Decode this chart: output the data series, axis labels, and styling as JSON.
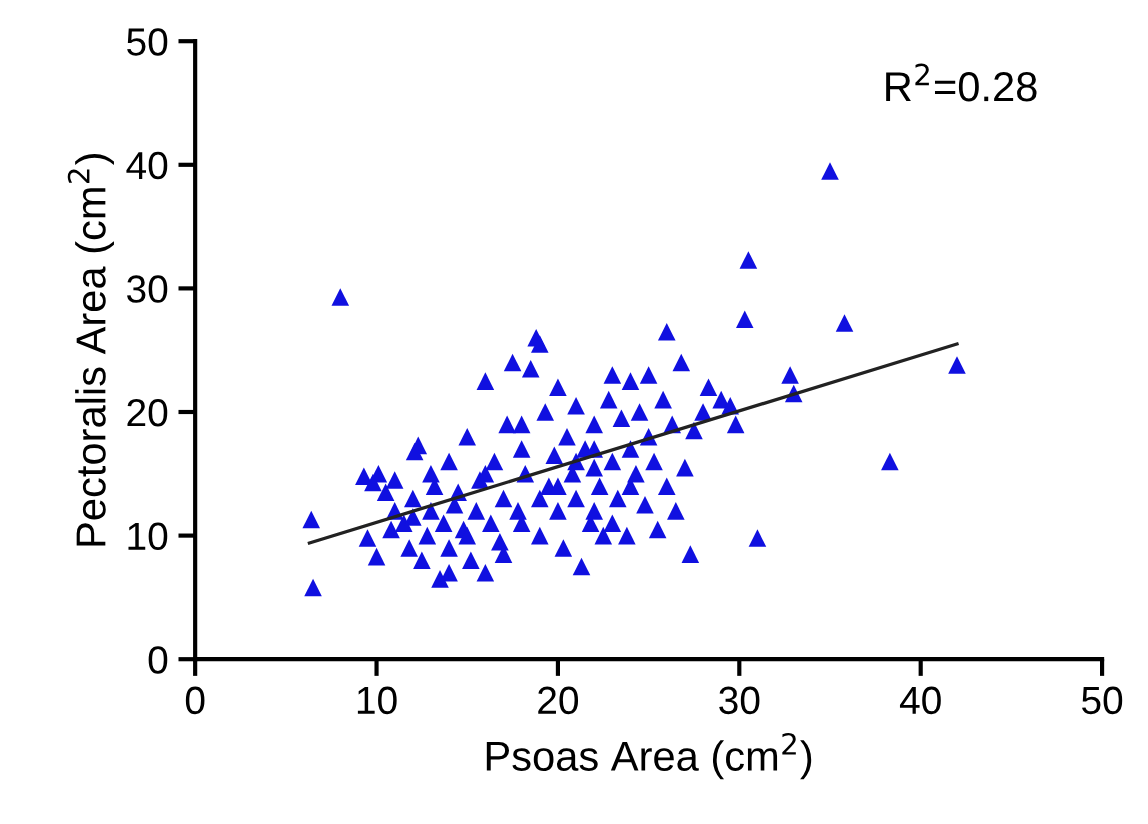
{
  "chart_data": {
    "type": "scatter",
    "xlabel": "Psoas Area (cm$^{2}$)",
    "ylabel": "Pectoralis Area (cm$^{2}$)",
    "annotations": [
      "R$^{2}$=0.28"
    ],
    "xlim": [
      0,
      50
    ],
    "ylim": [
      0,
      50
    ],
    "xticks": [
      0,
      10,
      20,
      30,
      40,
      50
    ],
    "yticks": [
      0,
      10,
      20,
      30,
      40,
      50
    ],
    "grid": false,
    "legend": false,
    "marker": "triangle",
    "series": [
      {
        "color": "#1010e0",
        "x": [
          8,
          35,
          35.8,
          30.5,
          30.3,
          38.3,
          42,
          31,
          6.4,
          6.5,
          32.8,
          33,
          9.3,
          9.8,
          10.1,
          10.5,
          9.5,
          10,
          10.8,
          11,
          11.5,
          11.8,
          12,
          12.1,
          12.3,
          12.5,
          12.8,
          13,
          13.2,
          13.5,
          13.7,
          14,
          14,
          14.3,
          14.5,
          14.8,
          15,
          15.2,
          15.5,
          15.7,
          16,
          16,
          16.3,
          16.5,
          16.8,
          17,
          17.2,
          17.5,
          17.8,
          18,
          18.2,
          18.5,
          18.8,
          19,
          19,
          19.3,
          19.5,
          19.8,
          20,
          20,
          20.3,
          20.5,
          20.8,
          21,
          21,
          21.3,
          21.5,
          21.8,
          22,
          22,
          22.3,
          22.5,
          22.8,
          23,
          23,
          23.3,
          23.5,
          23.8,
          24,
          24,
          24.3,
          24.5,
          24.8,
          25,
          25,
          25.3,
          25.5,
          25.8,
          26,
          26,
          26.3,
          26.5,
          26.8,
          27,
          27.3,
          27.5,
          28,
          28.3,
          29,
          29.5,
          29.8,
          24,
          22,
          18,
          17,
          16,
          15,
          14,
          13,
          12,
          11,
          19,
          21,
          23,
          20,
          18,
          22
        ],
        "values": [
          29.3,
          39.5,
          27.2,
          32.3,
          27.5,
          16,
          23.8,
          9.8,
          11.3,
          5.8,
          23,
          21.5,
          14.8,
          14.3,
          15,
          13.5,
          9.8,
          8.3,
          10.5,
          12,
          11,
          9,
          13,
          16.8,
          17.3,
          8,
          10,
          12,
          14,
          6.5,
          11,
          9,
          16,
          12.5,
          13.5,
          10.5,
          18,
          8,
          12,
          14.5,
          22.5,
          7,
          11,
          16,
          9.5,
          13,
          19,
          24,
          12,
          17,
          15,
          23.5,
          26,
          25.5,
          10,
          20,
          14,
          16.5,
          12,
          22,
          9,
          18,
          15,
          13,
          20.5,
          7.5,
          17,
          11,
          15.5,
          19,
          14,
          10,
          21,
          16,
          23,
          13,
          19.5,
          10,
          17,
          22.5,
          15,
          20,
          12.5,
          18,
          23,
          16,
          10.5,
          21,
          26.5,
          14,
          19,
          12,
          24,
          15.5,
          8.5,
          18.5,
          20,
          22,
          21,
          20.5,
          19,
          14,
          12,
          11,
          8.5,
          15,
          10,
          7,
          15,
          11.5,
          14.5,
          13,
          16,
          11,
          14,
          19,
          17
        ]
      },
      {
        "type": "line",
        "color": "#222222",
        "marker": "none",
        "line_style": "solid",
        "x": [
          6.3,
          42
        ],
        "values": [
          9.4,
          25.5
        ]
      }
    ]
  }
}
